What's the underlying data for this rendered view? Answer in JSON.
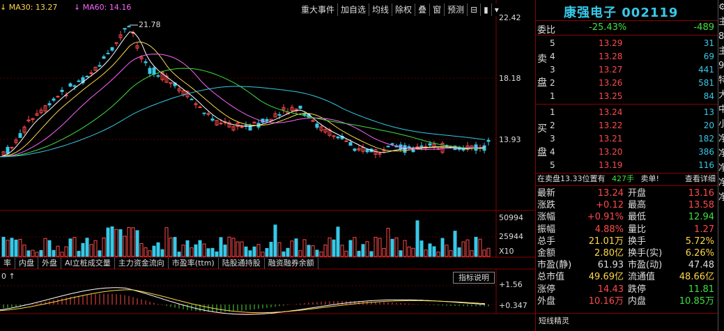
{
  "ma_legend": [
    {
      "label": "MA30: 13.27",
      "color": "#ffd84a"
    },
    {
      "label": "MA60: 14.16",
      "color": "#ff66ff"
    }
  ],
  "toolbar": [
    "重大事件",
    "加自选",
    "均线",
    "除权",
    "叠",
    "窗",
    "预测",
    "⊟",
    "▮",
    "▾"
  ],
  "price_axis": {
    "top": "22.42",
    "mid": "18.18",
    "low": "13.93"
  },
  "peak_label": "21.78",
  "volume_axis": {
    "top": "50994",
    "mid": "25944",
    "unit": "X10"
  },
  "indicator_tabs": [
    "率",
    "内盘",
    "外盘",
    "AI立桩成交量",
    "主力资金流向",
    "市盈率(ttm)",
    "陆股通持股",
    "融资融券余额"
  ],
  "indicator_note": "指标说明",
  "indicator_axis": {
    "top": "+1.56",
    "mid": "+0.347"
  },
  "indicator_prefix": "0 ↑",
  "stock": {
    "name": "康强电子",
    "code": "002119"
  },
  "webi": {
    "label": "委比",
    "pct": "-25.43%",
    "diff": "-489"
  },
  "sell_side_label": [
    "卖",
    "盘"
  ],
  "buy_side_label": [
    "买",
    "盘"
  ],
  "sell_orders": [
    {
      "lvl": "5",
      "price": "13.29",
      "qty": "31"
    },
    {
      "lvl": "4",
      "price": "13.28",
      "qty": "69"
    },
    {
      "lvl": "3",
      "price": "13.27",
      "qty": "441"
    },
    {
      "lvl": "2",
      "price": "13.26",
      "qty": "581"
    },
    {
      "lvl": "1",
      "price": "13.25",
      "qty": "84"
    }
  ],
  "buy_orders": [
    {
      "lvl": "1",
      "price": "13.24",
      "qty": "13"
    },
    {
      "lvl": "2",
      "price": "13.22",
      "qty": "20"
    },
    {
      "lvl": "3",
      "price": "13.21",
      "qty": "182"
    },
    {
      "lvl": "4",
      "price": "13.20",
      "qty": "386"
    },
    {
      "lvl": "5",
      "price": "13.19",
      "qty": "116"
    }
  ],
  "sell_note": {
    "text": "在卖盘13.33位置有",
    "qty": "427手",
    "action": "卖单!",
    "link": "查看详细"
  },
  "quotes": [
    {
      "k1": "最新",
      "v1": "13.24",
      "c1": "red",
      "k2": "开盘",
      "v2": "13.16",
      "c2": "red"
    },
    {
      "k1": "涨跌",
      "v1": "+0.12",
      "c1": "red",
      "k2": "最高",
      "v2": "13.58",
      "c2": "red"
    },
    {
      "k1": "涨幅",
      "v1": "+0.91%",
      "c1": "red",
      "k2": "最低",
      "v2": "12.94",
      "c2": "green"
    },
    {
      "k1": "振幅",
      "v1": "4.88%",
      "c1": "red",
      "k2": "量比",
      "v2": "1.27",
      "c2": "red"
    },
    {
      "k1": "总手",
      "v1": "21.01万",
      "c1": "yellow",
      "k2": "换手",
      "v2": "5.72%",
      "c2": "yellow"
    },
    {
      "k1": "金额",
      "v1": "2.80亿",
      "c1": "yellow",
      "k2": "换手(实)",
      "v2": "6.26%",
      "c2": "yellow"
    },
    {
      "k1": "市盈(静)",
      "v1": "61.93",
      "c1": "white",
      "k2": "市盈(动)",
      "v2": "47.48",
      "c2": "white"
    },
    {
      "k1": "总市值",
      "v1": "49.69亿",
      "c1": "yellow",
      "k2": "流通值",
      "v2": "48.66亿",
      "c2": "yellow"
    },
    {
      "k1": "涨停",
      "v1": "14.43",
      "c1": "red",
      "k2": "跌停",
      "v2": "11.81",
      "c2": "green"
    },
    {
      "k1": "外盘",
      "v1": "10.16万",
      "c1": "red",
      "k2": "内盘",
      "v2": "10.85万",
      "c2": "green"
    }
  ],
  "bottom_tab": "短线精灵",
  "edge_chars": [
    "⚙",
    "主",
    "85",
    "主",
    "91",
    "特",
    "大",
    "中",
    "小",
    "净",
    "净",
    "净",
    "净",
    "净"
  ],
  "colors": {
    "up": "#ff4a4a",
    "down": "#37c9e8",
    "border": "#8b0000",
    "title": "#37c9e8"
  }
}
